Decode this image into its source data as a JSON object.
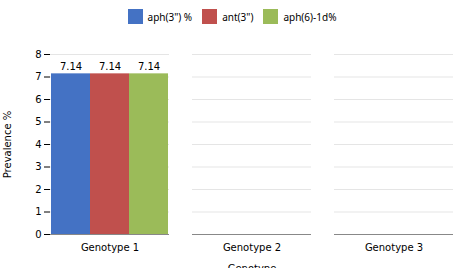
{
  "chart_data": {
    "type": "bar",
    "categories": [
      "Genotype 1",
      "Genotype 2",
      "Genotype 3"
    ],
    "series": [
      {
        "name": "aph(3\") %",
        "color": "#4472C4",
        "values": [
          7.14,
          0,
          0
        ],
        "value_labels": [
          "7.14",
          null,
          null
        ]
      },
      {
        "name": "ant(3\")",
        "color": "#C0504D",
        "values": [
          7.14,
          0,
          0
        ],
        "value_labels": [
          "7.14",
          null,
          null
        ]
      },
      {
        "name": "aph(6)-1d%",
        "color": "#9BBB59",
        "values": [
          7.14,
          0,
          0
        ],
        "value_labels": [
          "7.14",
          null,
          null
        ]
      }
    ],
    "xlabel": "Genotype",
    "ylabel": "Prevalence %",
    "ylim": [
      0,
      8
    ],
    "yticks": [
      0,
      1,
      2,
      3,
      4,
      5,
      6,
      7,
      8
    ],
    "grid": true,
    "legend": "top",
    "data_labels": true
  }
}
